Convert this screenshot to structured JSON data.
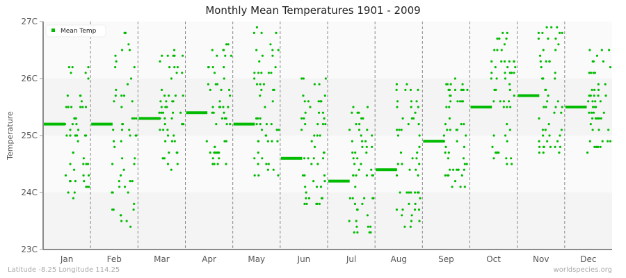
{
  "title": "Monthly Mean Temperatures 1901 - 2009",
  "footer": {
    "location": "Latitude -8.25 Longitude 114.25",
    "source": "worldspecies.org"
  },
  "colors": {
    "series": "#00bb00",
    "grid_dash": "#888888",
    "band_dark": "#f4f4f4",
    "band_light": "#fafafa"
  },
  "chart_data": {
    "type": "scatter",
    "title": "Monthly Mean Temperatures 1901 - 2009",
    "xlabel": "",
    "ylabel": "Temperature",
    "ylim": [
      23,
      27
    ],
    "yticks": [
      "23C",
      "24C",
      "25C",
      "26C",
      "27C"
    ],
    "categories": [
      "Jan",
      "Feb",
      "Mar",
      "Apr",
      "May",
      "Jun",
      "Jul",
      "Aug",
      "Sep",
      "Oct",
      "Nov",
      "Dec"
    ],
    "legend": {
      "position": "top-left",
      "entries": [
        "Mean Temp"
      ]
    },
    "series": [
      {
        "name": "Mean Temp",
        "mean_values": [
          25.2,
          25.2,
          25.3,
          25.4,
          25.2,
          24.6,
          24.2,
          24.4,
          24.9,
          25.5,
          25.7,
          25.5
        ],
        "range_min": [
          23.9,
          23.4,
          24.4,
          24.5,
          24.3,
          23.6,
          23.2,
          23.4,
          24.1,
          24.4,
          24.7,
          24.6
        ],
        "range_max": [
          26.3,
          26.9,
          26.6,
          26.7,
          26.9,
          26.1,
          25.6,
          25.9,
          26.0,
          26.8,
          26.9,
          26.5
        ]
      }
    ]
  }
}
